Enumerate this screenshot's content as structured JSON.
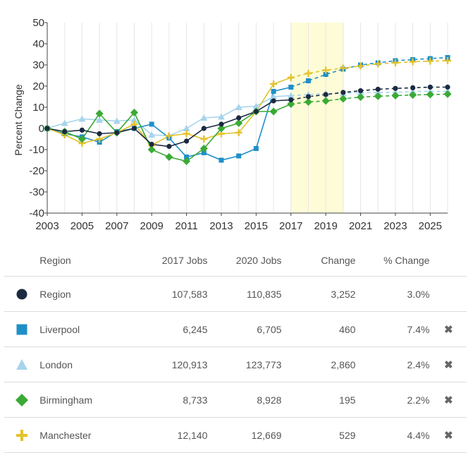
{
  "chart_data": {
    "type": "line",
    "ylabel": "Percent Change",
    "ylim": [
      -40,
      50
    ],
    "yticks": [
      50,
      40,
      30,
      20,
      10,
      0,
      -10,
      -20,
      -30,
      -40
    ],
    "xlim": [
      2003,
      2026
    ],
    "xticks": [
      2003,
      2005,
      2007,
      2009,
      2011,
      2013,
      2015,
      2017,
      2019,
      2021,
      2023,
      2025
    ],
    "highlight": {
      "from": 2017,
      "to": 2020,
      "color": "#fdfcd6"
    },
    "projection_from": 2017,
    "grid": "vertical",
    "x": [
      2003,
      2004,
      2005,
      2006,
      2007,
      2008,
      2009,
      2010,
      2011,
      2012,
      2013,
      2014,
      2015,
      2016,
      2017,
      2018,
      2019,
      2020,
      2021,
      2022,
      2023,
      2024,
      2025,
      2026
    ],
    "series": [
      {
        "name": "Region",
        "color": "#1b2a41",
        "marker": "circle",
        "values": [
          0,
          -1.5,
          -0.8,
          -2.5,
          -2,
          0,
          -7.5,
          -8.5,
          -6,
          0,
          2,
          5,
          8,
          13,
          13.5,
          15,
          16,
          17,
          17.8,
          18.5,
          18.9,
          19.2,
          19.5,
          19.5
        ]
      },
      {
        "name": "Liverpool",
        "color": "#1f8fc9",
        "marker": "square",
        "values": [
          0,
          -2.5,
          -4,
          -6.5,
          -1.5,
          0,
          2,
          -4.5,
          -13.5,
          -11.5,
          -15,
          -13,
          -9.5,
          17.5,
          19.5,
          22.5,
          25.5,
          28,
          30,
          31,
          32,
          32.5,
          33,
          33.5
        ]
      },
      {
        "name": "London",
        "color": "#a6d4ec",
        "marker": "triangle",
        "values": [
          0,
          2.5,
          4.5,
          4,
          3.5,
          4,
          -3,
          -3.5,
          0,
          5,
          5.5,
          10,
          10.5,
          15,
          15.5,
          16,
          16.5,
          16.5,
          17,
          17,
          17,
          17.5,
          17.5,
          17.5
        ]
      },
      {
        "name": "Birmingham",
        "color": "#3aaa35",
        "marker": "diamond",
        "values": [
          0,
          -1.5,
          -5,
          7,
          -2,
          7.5,
          -10,
          -13.5,
          -15.5,
          -9.5,
          0,
          2.5,
          8,
          8,
          11.5,
          12.5,
          13,
          14,
          14.8,
          15.2,
          15.5,
          15.8,
          16,
          16.2
        ]
      },
      {
        "name": "Manchester",
        "color": "#e3c22b",
        "marker": "plus",
        "values": [
          0,
          -3,
          -7,
          -5,
          -2,
          2,
          -8,
          -3.5,
          -2.5,
          -5,
          -2.5,
          -2,
          8,
          21,
          24,
          26,
          27.5,
          28.5,
          29.5,
          30.5,
          31,
          31.5,
          31.8,
          32
        ]
      }
    ]
  },
  "table": {
    "headers": {
      "region": "Region",
      "jobs_2017": "2017 Jobs",
      "jobs_2020": "2020 Jobs",
      "change": "Change",
      "pct_change": "% Change"
    },
    "rows": [
      {
        "name": "Region",
        "jobs_2017": "107,583",
        "jobs_2020": "110,835",
        "change": "3,252",
        "pct": "3.0%",
        "removable": false,
        "remove_label": ""
      },
      {
        "name": "Liverpool",
        "jobs_2017": "6,245",
        "jobs_2020": "6,705",
        "change": "460",
        "pct": "7.4%",
        "removable": true,
        "remove_label": "✖"
      },
      {
        "name": "London",
        "jobs_2017": "120,913",
        "jobs_2020": "123,773",
        "change": "2,860",
        "pct": "2.4%",
        "removable": true,
        "remove_label": "✖"
      },
      {
        "name": "Birmingham",
        "jobs_2017": "8,733",
        "jobs_2020": "8,928",
        "change": "195",
        "pct": "2.2%",
        "removable": true,
        "remove_label": "✖"
      },
      {
        "name": "Manchester",
        "jobs_2017": "12,140",
        "jobs_2020": "12,669",
        "change": "529",
        "pct": "4.4%",
        "removable": true,
        "remove_label": "✖"
      }
    ]
  }
}
